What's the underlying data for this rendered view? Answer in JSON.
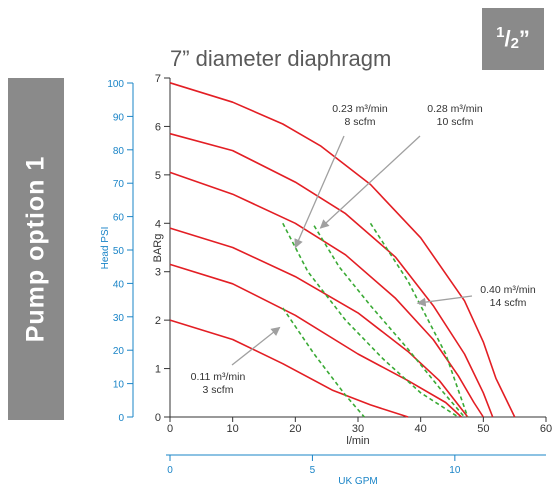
{
  "side_label": "Pump option 1",
  "size_badge": {
    "numerator": "1",
    "denominator": "2",
    "suffix": "”"
  },
  "chart_data": {
    "type": "line",
    "title": "7” diameter diaphragm",
    "xlabel": "l/min",
    "x2label": "UK GPM",
    "ylabel": "BARg",
    "y2label": "Head PSI",
    "xlim": [
      0,
      60
    ],
    "ylim": [
      0,
      7
    ],
    "x2lim": [
      0,
      13.2
    ],
    "y2lim": [
      0,
      101.5
    ],
    "x_ticks": [
      0,
      10,
      20,
      30,
      40,
      50,
      60
    ],
    "y_ticks": [
      0,
      1,
      2,
      3,
      4,
      5,
      6,
      7
    ],
    "x2_ticks": [
      0,
      5,
      10
    ],
    "y2_ticks": [
      0,
      10,
      20,
      30,
      40,
      50,
      60,
      70,
      80,
      90,
      100
    ],
    "grid": false,
    "colors": {
      "pressure_curves": "#e31e24",
      "air_curves": "#3aaa35",
      "axis": "#1a84c7",
      "arrow": "#a0a0a0"
    },
    "series": [
      {
        "x": [
          0,
          10,
          18,
          24,
          32,
          40,
          47,
          50,
          52,
          55
        ],
        "y": [
          6.9,
          6.5,
          6.05,
          5.6,
          4.8,
          3.7,
          2.4,
          1.55,
          0.8,
          0
        ]
      },
      {
        "x": [
          0,
          10,
          20,
          28,
          36,
          42,
          47,
          50,
          51.5
        ],
        "y": [
          5.85,
          5.5,
          4.85,
          4.2,
          3.3,
          2.3,
          1.3,
          0.5,
          0
        ]
      },
      {
        "x": [
          0,
          10,
          20,
          28,
          36,
          42,
          46,
          48.5,
          50
        ],
        "y": [
          5.05,
          4.6,
          4.0,
          3.35,
          2.45,
          1.6,
          0.85,
          0.3,
          0
        ]
      },
      {
        "x": [
          0,
          10,
          20,
          30,
          38,
          43,
          46,
          47.5
        ],
        "y": [
          3.9,
          3.5,
          2.9,
          2.15,
          1.35,
          0.75,
          0.25,
          0
        ]
      },
      {
        "x": [
          0,
          10,
          20,
          30,
          38,
          44,
          46.5
        ],
        "y": [
          3.15,
          2.75,
          2.1,
          1.3,
          0.75,
          0.3,
          0
        ]
      },
      {
        "x": [
          0,
          10,
          18,
          26,
          32,
          38
        ],
        "y": [
          2.0,
          1.6,
          1.1,
          0.55,
          0.25,
          0
        ]
      }
    ],
    "air_lines": [
      {
        "x": [
          18,
          23,
          28,
          31
        ],
        "y": [
          2.25,
          1.3,
          0.45,
          0
        ]
      },
      {
        "x": [
          18,
          22,
          28,
          34,
          40,
          46
        ],
        "y": [
          4.0,
          3.0,
          2.0,
          1.2,
          0.5,
          0
        ]
      },
      {
        "x": [
          23,
          27,
          32,
          38,
          43,
          47
        ],
        "y": [
          3.95,
          3.1,
          2.3,
          1.4,
          0.6,
          0
        ]
      },
      {
        "x": [
          32,
          38,
          44,
          47.5
        ],
        "y": [
          4.0,
          2.8,
          1.3,
          0
        ]
      }
    ],
    "annotations": [
      {
        "line1": "0.23 m³/min",
        "line2": "8 scfm",
        "target": [
          20,
          3.5
        ]
      },
      {
        "line1": "0.28 m³/min",
        "line2": "10 scfm",
        "target": [
          24,
          3.9
        ]
      },
      {
        "line1": "0.40 m³/min",
        "line2": "14 scfm",
        "target": [
          39.5,
          2.35
        ]
      },
      {
        "line1": "0.11 m³/min",
        "line2": "3 scfm",
        "target": [
          17.5,
          1.85
        ]
      }
    ]
  }
}
